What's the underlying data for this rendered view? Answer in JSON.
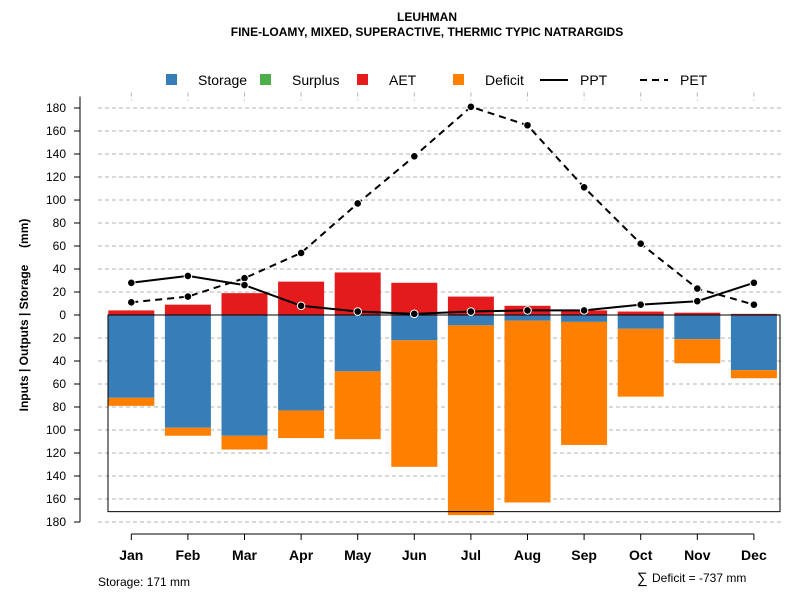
{
  "chart_data": {
    "type": "bar",
    "title": "LEUHMAN",
    "subtitle": "FINE-LOAMY, MIXED, SUPERACTIVE, THERMIC TYPIC NATRARGIDS",
    "ylabel": "Inputs | Outputs | Storage     (mm)",
    "xlabel": "",
    "ylim": [
      -180,
      190
    ],
    "y_ticks": [
      180,
      160,
      140,
      120,
      100,
      80,
      60,
      40,
      20,
      0,
      -20,
      -40,
      -60,
      -80,
      -100,
      -120,
      -140,
      -160,
      -180
    ],
    "y_tick_labels": [
      "180",
      "160",
      "140",
      "120",
      "100",
      "80",
      "60",
      "40",
      "20",
      "0",
      "20",
      "40",
      "60",
      "80",
      "100",
      "120",
      "140",
      "160",
      "180"
    ],
    "grid": "horizontal-dashed",
    "categories": [
      "Jan",
      "Feb",
      "Mar",
      "Apr",
      "May",
      "Jun",
      "Jul",
      "Aug",
      "Sep",
      "Oct",
      "Nov",
      "Dec"
    ],
    "legend": {
      "position": "top",
      "items": [
        {
          "label": "Storage",
          "kind": "box",
          "color": "#377EB8"
        },
        {
          "label": "Surplus",
          "kind": "box",
          "color": "#4DAF4A"
        },
        {
          "label": "AET",
          "kind": "box",
          "color": "#E41A1C"
        },
        {
          "label": "Deficit",
          "kind": "box",
          "color": "#FF7F00"
        },
        {
          "label": "PPT",
          "kind": "solid-line",
          "color": "#000000"
        },
        {
          "label": "PET",
          "kind": "dashed-line",
          "color": "#000000"
        }
      ]
    },
    "series": [
      {
        "name": "AET",
        "color": "#E41A1C",
        "values": [
          4,
          9,
          19,
          29,
          37,
          28,
          16,
          8,
          4,
          3,
          2,
          1
        ]
      },
      {
        "name": "Storage",
        "color": "#377EB8",
        "values": [
          -72,
          -98,
          -105,
          -83,
          -49,
          -22,
          -9,
          -5,
          -6,
          -12,
          -21,
          -48
        ]
      },
      {
        "name": "Deficit",
        "color": "#FF7F00",
        "values": [
          -7,
          -7,
          -12,
          -24,
          -59,
          -110,
          -165,
          -158,
          -107,
          -59,
          -21,
          -7
        ]
      },
      {
        "name": "Surplus",
        "color": "#4DAF4A",
        "values": [
          0,
          0,
          0,
          0,
          0,
          0,
          0,
          0,
          0,
          0,
          0,
          0
        ]
      },
      {
        "name": "PPT",
        "color": "#000000",
        "line": "solid",
        "values": [
          28,
          34,
          26,
          8,
          3,
          1,
          3,
          4,
          4,
          9,
          12,
          28
        ]
      },
      {
        "name": "PET",
        "color": "#000000",
        "line": "dashed",
        "values": [
          11,
          16,
          32,
          54,
          97,
          138,
          181,
          165,
          111,
          62,
          23,
          9
        ]
      }
    ],
    "storage_capacity": 171,
    "annotations": {
      "storage": "Storage: 171 mm",
      "deficit_symbol": "∑",
      "deficit": "Deficit = -737 mm"
    }
  }
}
